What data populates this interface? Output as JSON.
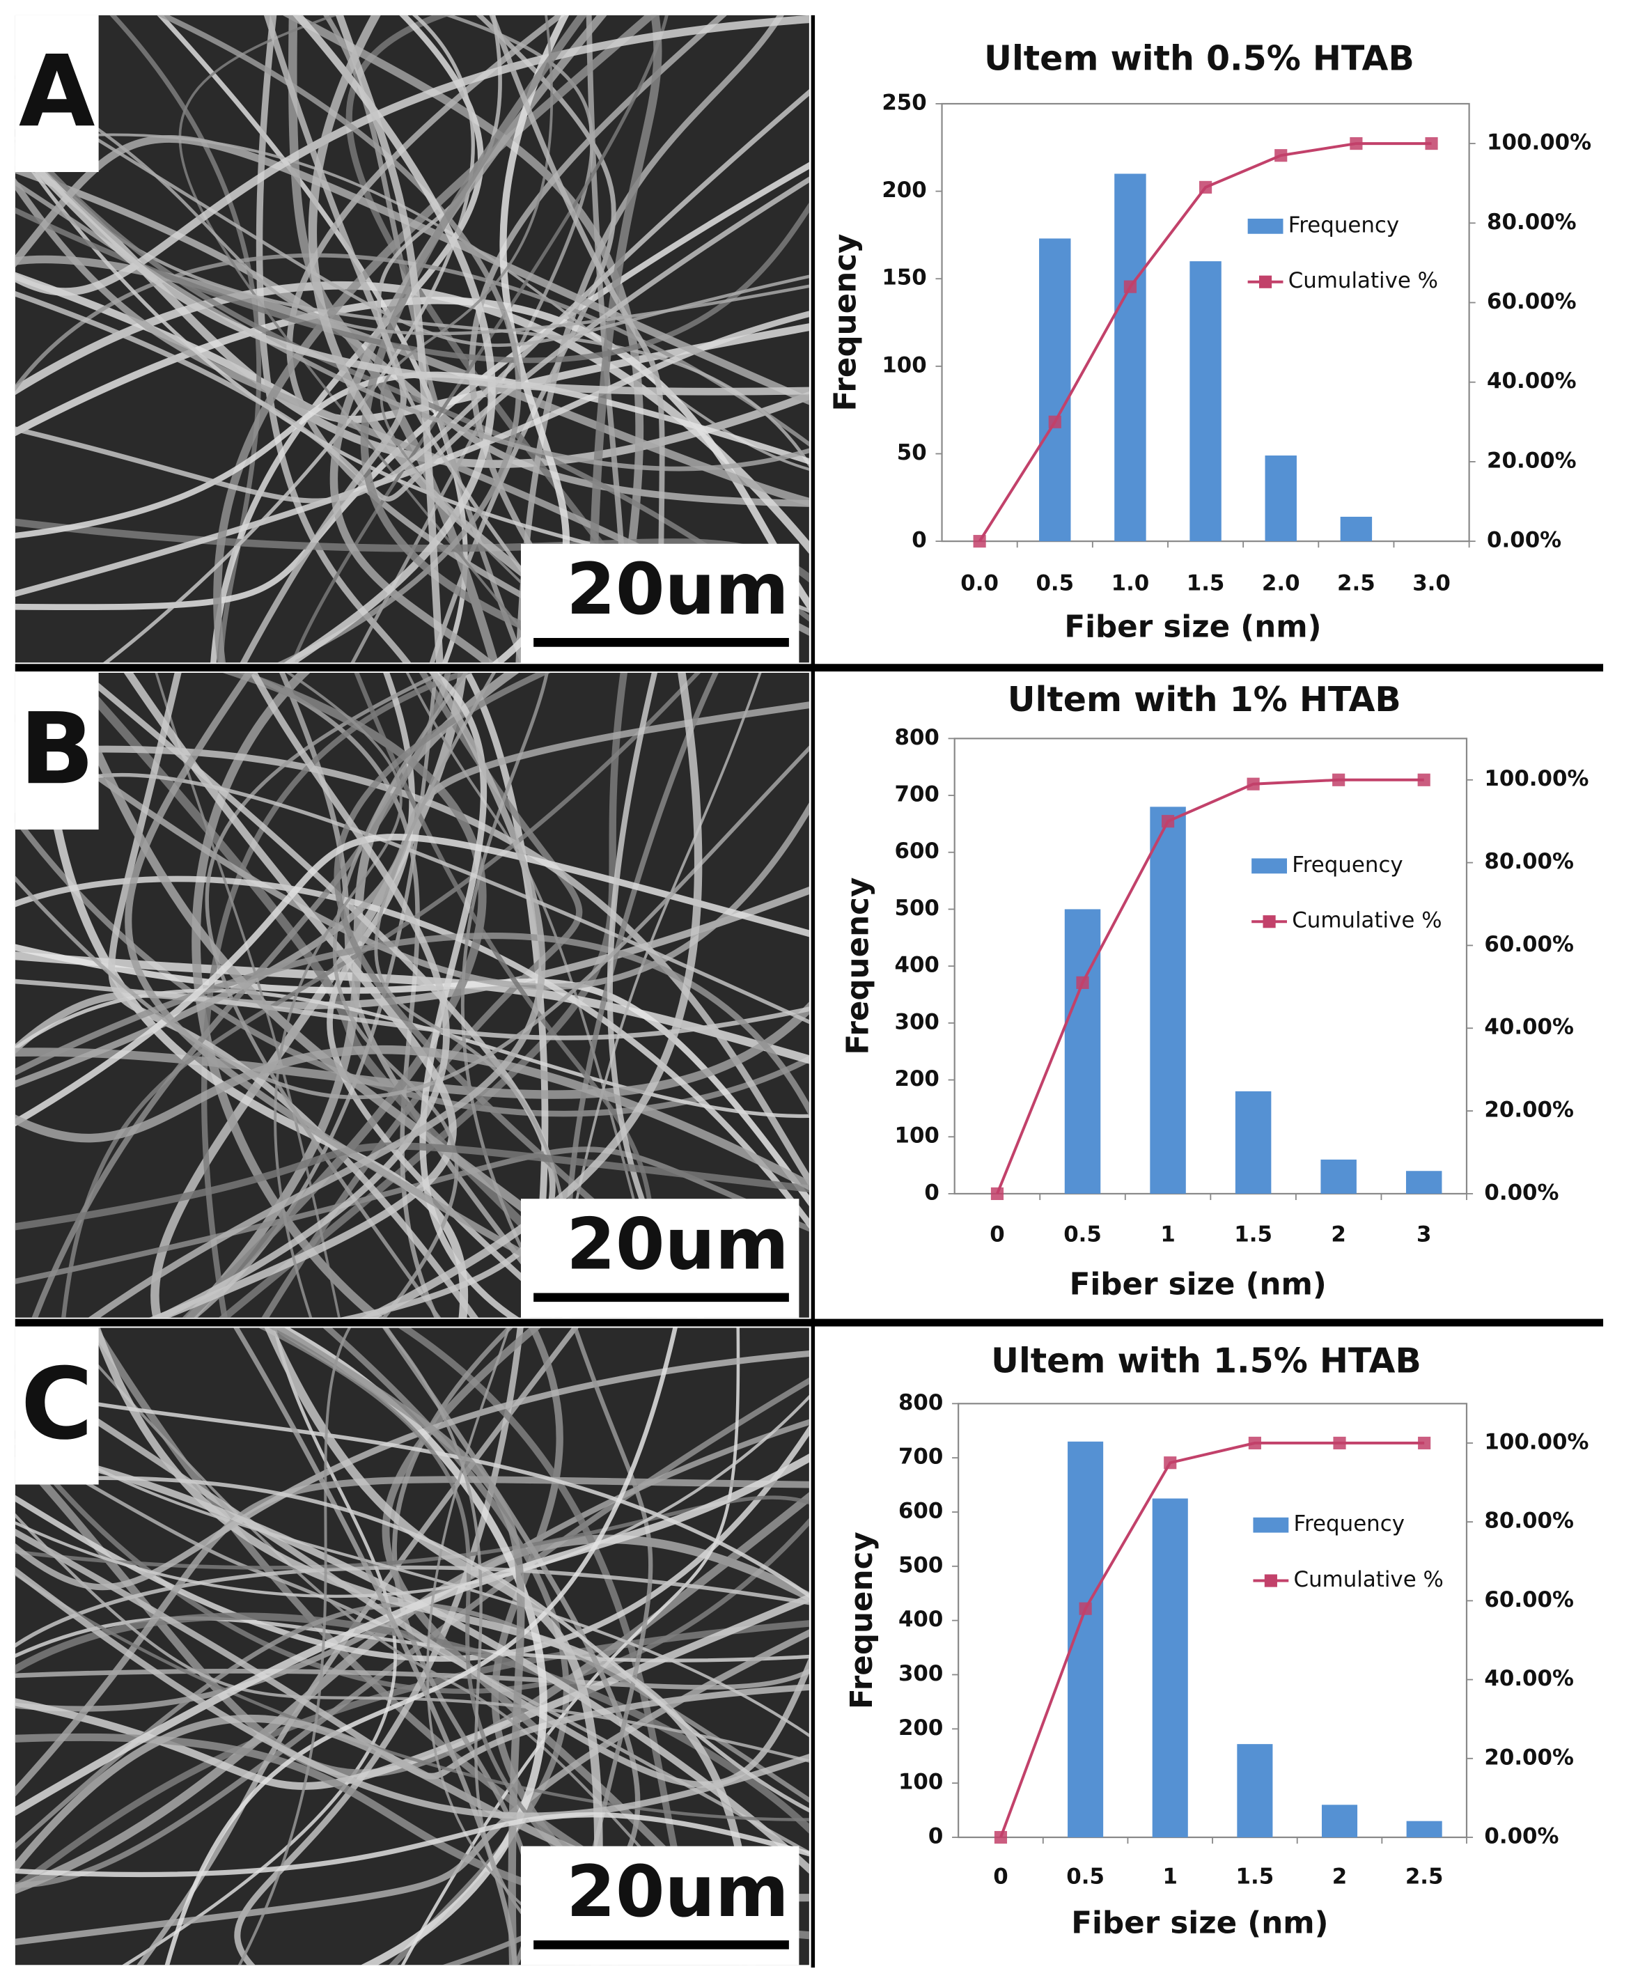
{
  "panels": [
    {
      "label": "A",
      "scale_bar": "20um"
    },
    {
      "label": "B",
      "scale_bar": "20um"
    },
    {
      "label": "C",
      "scale_bar": "20um"
    }
  ],
  "chart_data": [
    {
      "type": "bar",
      "title": "Ultem with 0.5% HTAB",
      "x_label": "Fiber size (nm)",
      "y_label": "Frequency",
      "categories": [
        "0.0",
        "0.5",
        "1.0",
        "1.5",
        "2.0",
        "2.5",
        "3.0"
      ],
      "series": [
        {
          "name": "Frequency",
          "color": "#5591d3",
          "values": [
            0,
            173,
            210,
            160,
            49,
            14,
            0
          ]
        },
        {
          "name": "Cumulative %",
          "color": "#c2416a",
          "axis": "y2",
          "values": [
            0,
            30,
            64,
            89,
            97,
            100,
            100
          ]
        }
      ],
      "ylim": [
        0,
        250
      ],
      "yticks": [
        0,
        50,
        100,
        150,
        200,
        250
      ],
      "y2lim": [
        0,
        110
      ],
      "y2ticks": [
        {
          "value": 0,
          "label": "0.00%"
        },
        {
          "value": 20,
          "label": "20.00%"
        },
        {
          "value": 40,
          "label": "40.00%"
        },
        {
          "value": 60,
          "label": "60.00%"
        },
        {
          "value": 80,
          "label": "80.00%"
        },
        {
          "value": 100,
          "label": "100.00%"
        }
      ],
      "legend": "right",
      "grid": false
    },
    {
      "type": "bar",
      "title": "Ultem with 1% HTAB",
      "x_label": "Fiber size (nm)",
      "y_label": "Frequency",
      "categories": [
        "0",
        "0.5",
        "1",
        "1.5",
        "2",
        "3"
      ],
      "series": [
        {
          "name": "Frequency",
          "color": "#5591d3",
          "values": [
            0,
            500,
            680,
            180,
            60,
            40
          ]
        },
        {
          "name": "Cumulative %",
          "color": "#c2416a",
          "axis": "y2",
          "values": [
            0,
            51,
            90,
            99,
            100,
            100
          ]
        }
      ],
      "ylim": [
        0,
        800
      ],
      "yticks": [
        0,
        100,
        200,
        300,
        400,
        500,
        600,
        700,
        800
      ],
      "y2lim": [
        0,
        110
      ],
      "y2ticks": [
        {
          "value": 0,
          "label": "0.00%"
        },
        {
          "value": 20,
          "label": "20.00%"
        },
        {
          "value": 40,
          "label": "40.00%"
        },
        {
          "value": 60,
          "label": "60.00%"
        },
        {
          "value": 80,
          "label": "80.00%"
        },
        {
          "value": 100,
          "label": "100.00%"
        }
      ],
      "legend": "right",
      "grid": false
    },
    {
      "type": "bar",
      "title": "Ultem with 1.5% HTAB",
      "x_label": "Fiber size (nm)",
      "y_label": "Frequency",
      "categories": [
        "0",
        "0.5",
        "1",
        "1.5",
        "2",
        "2.5"
      ],
      "series": [
        {
          "name": "Frequency",
          "color": "#5591d3",
          "values": [
            0,
            730,
            625,
            172,
            60,
            30
          ]
        },
        {
          "name": "Cumulative %",
          "color": "#c2416a",
          "axis": "y2",
          "values": [
            0,
            58,
            95,
            100,
            100,
            100
          ]
        }
      ],
      "ylim": [
        0,
        800
      ],
      "yticks": [
        0,
        100,
        200,
        300,
        400,
        500,
        600,
        700,
        800
      ],
      "y2lim": [
        0,
        110
      ],
      "y2ticks": [
        {
          "value": 0,
          "label": "0.00%"
        },
        {
          "value": 20,
          "label": "20.00%"
        },
        {
          "value": 40,
          "label": "40.00%"
        },
        {
          "value": 60,
          "label": "60.00%"
        },
        {
          "value": 80,
          "label": "80.00%"
        },
        {
          "value": 100,
          "label": "100.00%"
        }
      ],
      "legend": "right",
      "grid": false
    }
  ]
}
